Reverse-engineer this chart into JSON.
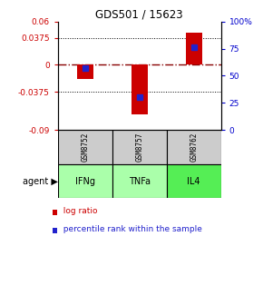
{
  "title": "GDS501 / 15623",
  "samples": [
    "GSM8752",
    "GSM8757",
    "GSM8762"
  ],
  "agents": [
    "IFNg",
    "TNFa",
    "IL4"
  ],
  "log_ratios": [
    -0.02,
    -0.068,
    0.045
  ],
  "percentile_ranks": [
    57,
    30,
    76
  ],
  "ylim_left": [
    -0.09,
    0.06
  ],
  "ylim_right": [
    0,
    100
  ],
  "yticks_left": [
    -0.09,
    -0.0375,
    0,
    0.0375,
    0.06
  ],
  "ytick_labels_left": [
    "-0.09",
    "-0.0375",
    "0",
    "0.0375",
    "0.06"
  ],
  "yticks_right": [
    0,
    25,
    50,
    75,
    100
  ],
  "ytick_labels_right": [
    "0",
    "25",
    "50",
    "75",
    "100%"
  ],
  "bar_color": "#cc0000",
  "dot_color": "#2222cc",
  "sample_bg_color": "#cccccc",
  "agent_bg_color_light": "#aaffaa",
  "agent_bg_color_dark": "#55ee55",
  "agent_colors": [
    "#aaffaa",
    "#aaffaa",
    "#55ee55"
  ],
  "zero_line_color": "#880000",
  "left_tick_color": "#cc0000",
  "right_tick_color": "#0000cc",
  "bar_width": 0.3
}
